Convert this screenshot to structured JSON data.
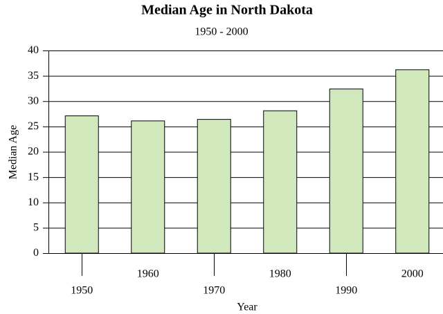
{
  "chart_data": {
    "type": "bar",
    "title": "Median Age in North Dakota",
    "subtitle": "1950 - 2000",
    "x_label": "Year",
    "y_label": "Median Age",
    "categories": [
      "1950",
      "1960",
      "1970",
      "1980",
      "1990",
      "2000"
    ],
    "values": [
      27.1,
      26.1,
      26.4,
      28.1,
      32.4,
      36.2
    ],
    "color": "#d0e8bc",
    "ylim": [
      0,
      40
    ],
    "yticks": [
      0,
      5,
      10,
      15,
      20,
      25,
      30,
      35,
      40
    ],
    "grid": true
  }
}
